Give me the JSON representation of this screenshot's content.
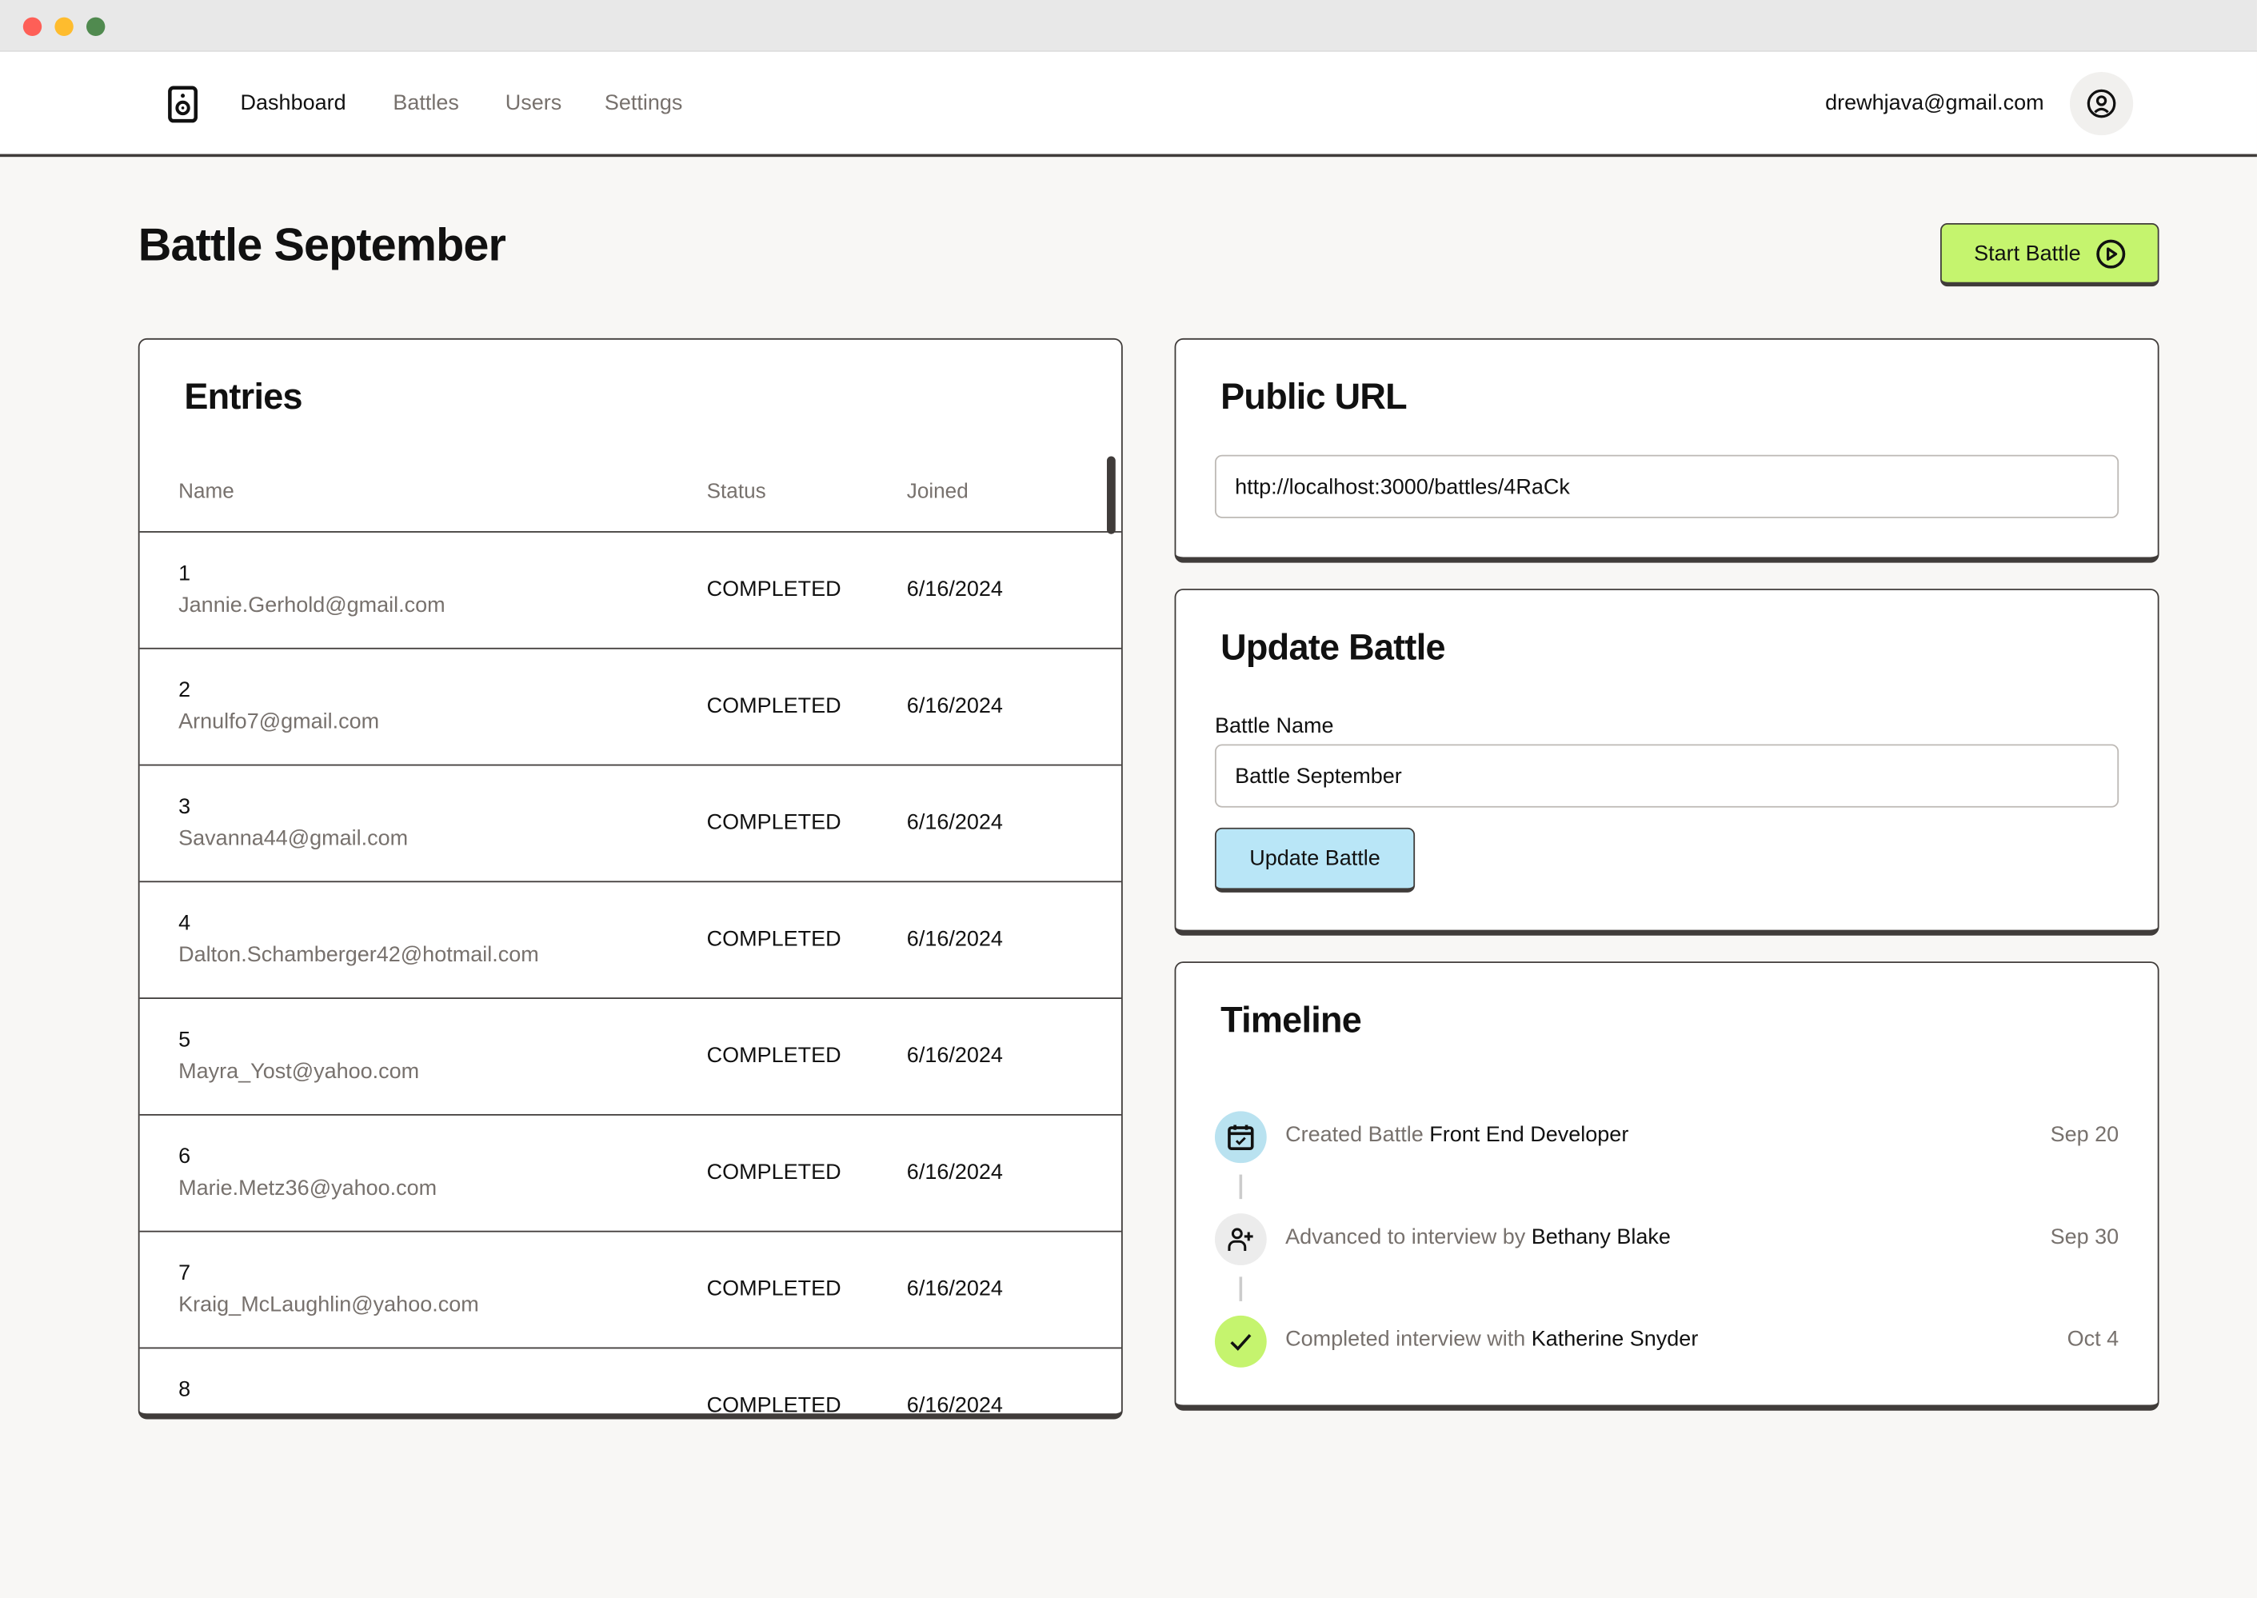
{
  "window": {
    "controls": [
      "close",
      "minimize",
      "maximize"
    ],
    "colors": {
      "close": "#fe5f57",
      "minimize": "#febc2e",
      "maximize": "#508a4f"
    }
  },
  "nav": {
    "logo_icon": "speaker-icon",
    "items": [
      {
        "label": "Dashboard",
        "active": true
      },
      {
        "label": "Battles",
        "active": false
      },
      {
        "label": "Users",
        "active": false
      },
      {
        "label": "Settings",
        "active": false
      }
    ],
    "user_email": "drewhjava@gmail.com",
    "avatar_icon": "user-circle-icon"
  },
  "page": {
    "title": "Battle September",
    "start_button": {
      "label": "Start Battle",
      "icon": "play-circle-icon",
      "color": "#c5f46e"
    }
  },
  "entries": {
    "title": "Entries",
    "columns": [
      "Name",
      "Status",
      "Joined"
    ],
    "rows": [
      {
        "num": "1",
        "email": "Jannie.Gerhold@gmail.com",
        "status": "COMPLETED",
        "joined": "6/16/2024"
      },
      {
        "num": "2",
        "email": "Arnulfo7@gmail.com",
        "status": "COMPLETED",
        "joined": "6/16/2024"
      },
      {
        "num": "3",
        "email": "Savanna44@gmail.com",
        "status": "COMPLETED",
        "joined": "6/16/2024"
      },
      {
        "num": "4",
        "email": "Dalton.Schamberger42@hotmail.com",
        "status": "COMPLETED",
        "joined": "6/16/2024"
      },
      {
        "num": "5",
        "email": "Mayra_Yost@yahoo.com",
        "status": "COMPLETED",
        "joined": "6/16/2024"
      },
      {
        "num": "6",
        "email": "Marie.Metz36@yahoo.com",
        "status": "COMPLETED",
        "joined": "6/16/2024"
      },
      {
        "num": "7",
        "email": "Kraig_McLaughlin@yahoo.com",
        "status": "COMPLETED",
        "joined": "6/16/2024"
      },
      {
        "num": "8",
        "email": "",
        "status": "COMPLETED",
        "joined": "6/16/2024"
      }
    ]
  },
  "public_url": {
    "title": "Public URL",
    "value": "http://localhost:3000/battles/4RaCk"
  },
  "update_battle": {
    "title": "Update Battle",
    "field_label": "Battle Name",
    "field_value": "Battle September",
    "button_label": "Update Battle",
    "button_color": "#b9e6f7"
  },
  "timeline": {
    "title": "Timeline",
    "events": [
      {
        "icon": "calendar-check-icon",
        "icon_bg": "#b9e2f0",
        "text": "Created Battle ",
        "strong": "Front End Developer",
        "date": "Sep 20"
      },
      {
        "icon": "user-plus-icon",
        "icon_bg": "#ececec",
        "text": "Advanced to interview by ",
        "strong": "Bethany Blake",
        "date": "Sep 30"
      },
      {
        "icon": "check-icon",
        "icon_bg": "#c5f46e",
        "text": "Completed interview with ",
        "strong": "Katherine Snyder",
        "date": "Oct 4"
      }
    ]
  }
}
